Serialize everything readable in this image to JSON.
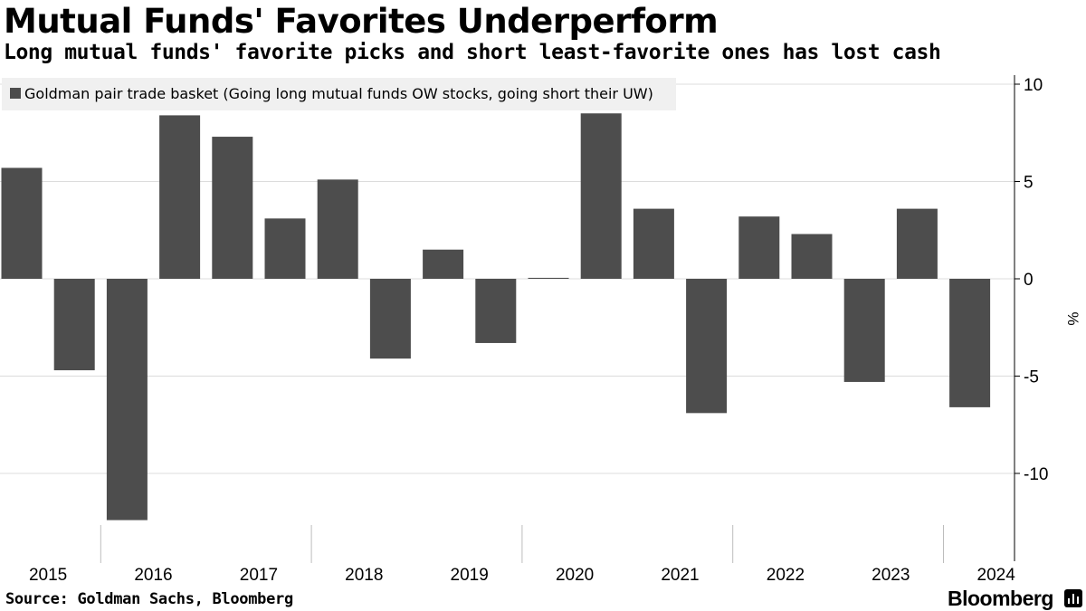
{
  "title": "Mutual Funds' Favorites Underperform",
  "subtitle": "Long mutual funds' favorite picks and short least-favorite ones has lost cash",
  "source": "Source: Goldman Sachs, Bloomberg",
  "brand": "Bloomberg",
  "colors": {
    "bar": "#4d4d4d",
    "grid": "#dcdcdc",
    "legend_bg": "#f0f0f0",
    "axis": "#000000"
  },
  "chart_data": {
    "type": "bar",
    "title": "Mutual Funds' Favorites Underperform",
    "subtitle": "Long mutual funds' favorite picks and short least-favorite ones has lost cash",
    "ylabel": "%",
    "ylim": [
      -14.5,
      10.5
    ],
    "yticks": [
      10,
      5,
      0,
      -5,
      -10
    ],
    "ytick_labels": [
      "10",
      "5",
      "0",
      "-5",
      "-10"
    ],
    "legend_position": "top-left",
    "series": [
      {
        "name": "Goldman pair trade basket (Going long mutual funds OW stocks, going short their UW)",
        "x": [
          "2015 H1",
          "2015 H2",
          "2016 H1",
          "2016 H2",
          "2017 H1",
          "2017 H2",
          "2018 H1",
          "2018 H2",
          "2019 H1",
          "2019 H2",
          "2020 H1",
          "2020 H2",
          "2021 H1",
          "2021 H2",
          "2022 H1",
          "2022 H2",
          "2023 H1",
          "2023 H2",
          "2024 H1"
        ],
        "values": [
          5.7,
          -4.7,
          -12.4,
          8.4,
          7.3,
          3.1,
          5.1,
          -4.1,
          1.5,
          -3.3,
          0.05,
          8.5,
          3.6,
          -6.9,
          3.2,
          2.3,
          -5.3,
          3.6,
          -6.6
        ]
      }
    ],
    "xtick_labels": [
      "2015",
      "2016",
      "2017",
      "2018",
      "2019",
      "2020",
      "2021",
      "2022",
      "2023",
      "2024"
    ],
    "year_label_positions": [
      0.5,
      2.5,
      4.5,
      6.5,
      8.5,
      10.5,
      12.5,
      14.5,
      16.5,
      18.5
    ],
    "year_separators": [
      1.5,
      5.5,
      9.5,
      13.5,
      17.5
    ]
  }
}
